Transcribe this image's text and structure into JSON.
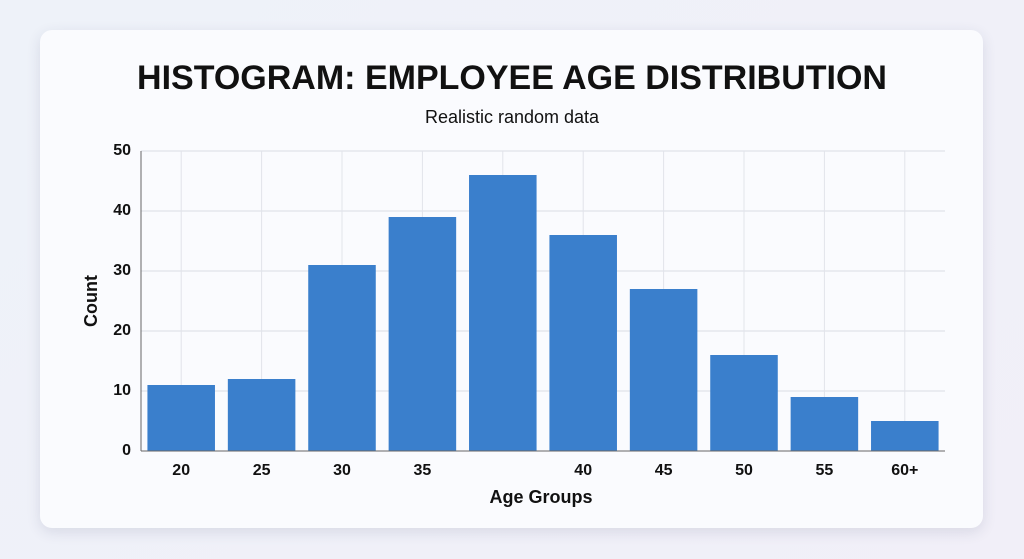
{
  "chart_data": {
    "type": "bar",
    "title": "HISTOGRAM: EMPLOYEE AGE DISTRIBUTION",
    "subtitle": "Realistic random data",
    "x_label": "Age Groups",
    "y_label": "Count",
    "categories": [
      "20",
      "25",
      "30",
      "35",
      null,
      "40",
      "45",
      "50",
      "55",
      "60+"
    ],
    "values": [
      11,
      12,
      31,
      39,
      46,
      36,
      27,
      16,
      9,
      5
    ],
    "color": "#3a7fcc",
    "ylim": [
      0,
      50
    ],
    "yticks": [
      0,
      10,
      20,
      30,
      40,
      50
    ],
    "grid": true
  }
}
